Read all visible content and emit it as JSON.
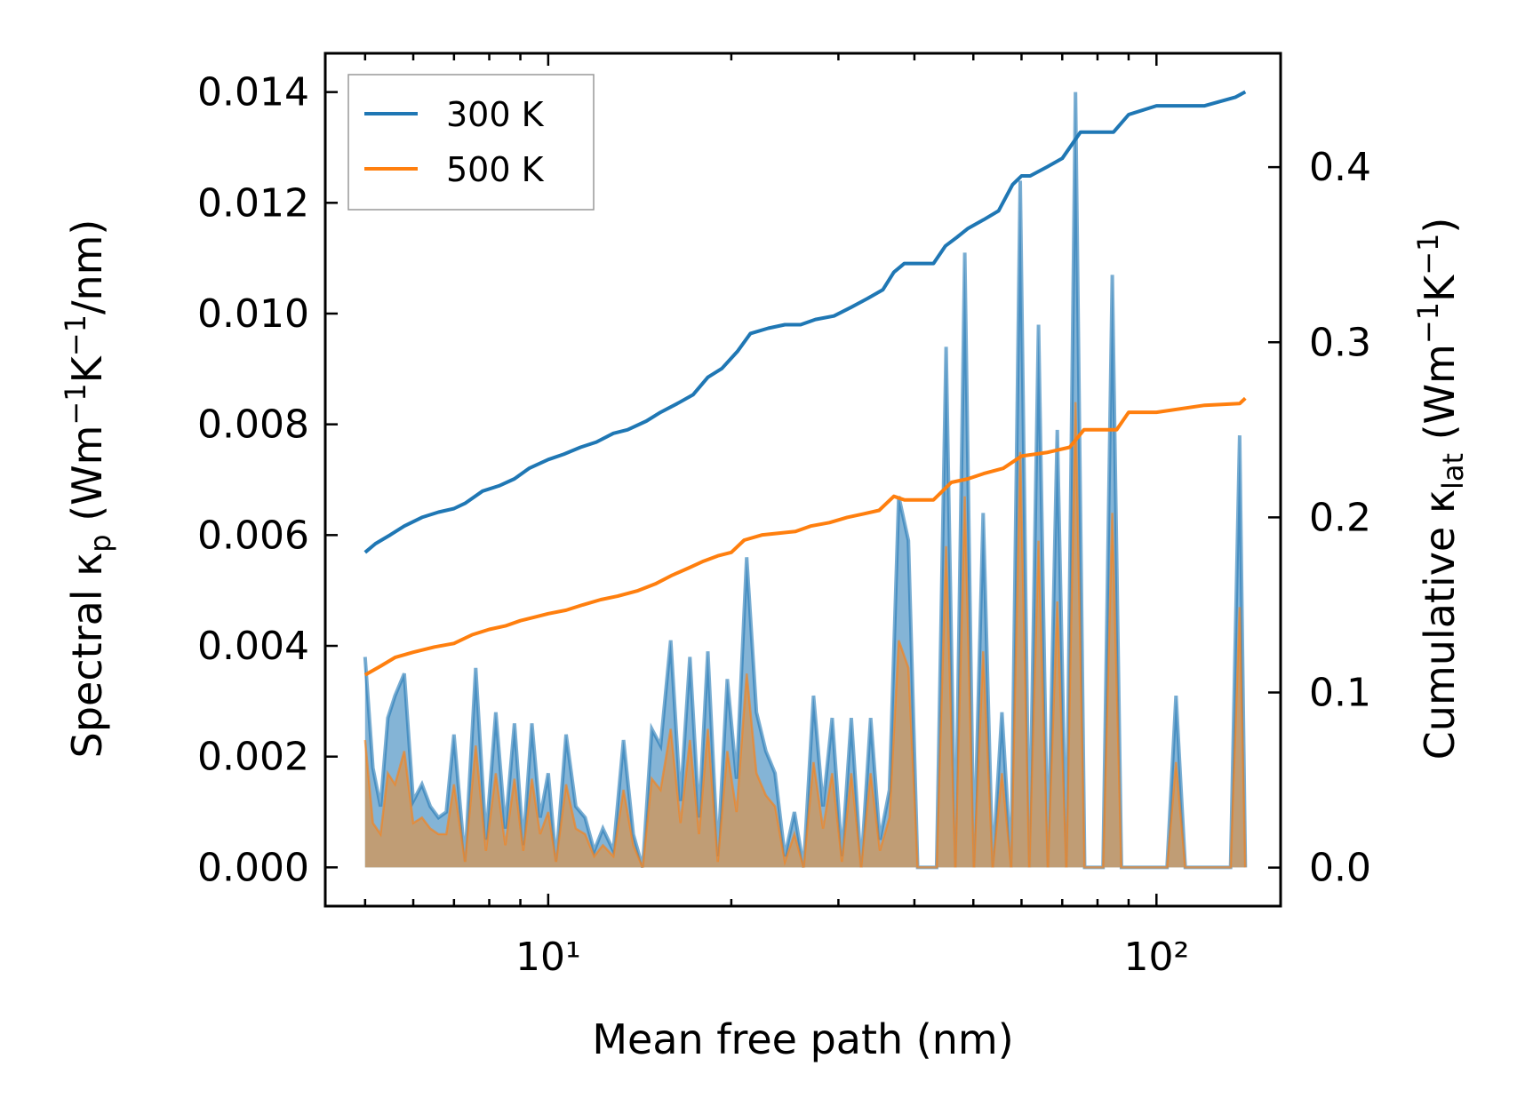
{
  "chart_data": {
    "type": "line",
    "title": "",
    "xlabel": "Mean free path (nm)",
    "ylabel_left": "Spectral κ_p (Wm⁻¹K⁻¹/nm)",
    "ylabel_right": "Cumulative κ_lat (Wm⁻¹K⁻¹)",
    "x_scale": "log",
    "xlim": [
      4.3,
      160
    ],
    "x_ticks": [
      10,
      100
    ],
    "x_tick_labels": [
      "10¹",
      "10²"
    ],
    "ylim_left": [
      -0.0007,
      0.0147
    ],
    "y_ticks_left": [
      0.0,
      0.002,
      0.004,
      0.006,
      0.008,
      0.01,
      0.012,
      0.014
    ],
    "y_tick_labels_left": [
      "0.000",
      "0.002",
      "0.004",
      "0.006",
      "0.008",
      "0.010",
      "0.012",
      "0.014"
    ],
    "ylim_right": [
      -0.022,
      0.465
    ],
    "y_ticks_right": [
      0.0,
      0.1,
      0.2,
      0.3,
      0.4
    ],
    "y_tick_labels_right": [
      "0.0",
      "0.1",
      "0.2",
      "0.3",
      "0.4"
    ],
    "legend": {
      "position": "top-left",
      "entries": [
        {
          "label": "300 K",
          "color": "#1f77b4"
        },
        {
          "label": "500 K",
          "color": "#ff7f0e"
        }
      ]
    },
    "series": [
      {
        "name": "300 K",
        "color": "#1f77b4",
        "cumulative": {
          "x": [
            5.0,
            5.2,
            5.5,
            5.8,
            6.2,
            6.6,
            7.0,
            7.3,
            7.8,
            8.3,
            8.8,
            9.3,
            10.0,
            10.6,
            11.3,
            12.0,
            12.8,
            13.5,
            14.5,
            15.3,
            16.3,
            17.3,
            18.3,
            19.3,
            20.5,
            21.5,
            23.0,
            24.5,
            26.0,
            27.5,
            29.5,
            31.5,
            33.5,
            35.5,
            37.0,
            38.5,
            40.0,
            43.0,
            45.0,
            47.0,
            49.0,
            52.0,
            55.0,
            58.0,
            60.0,
            62.0,
            66.0,
            70.0,
            75.0,
            78.0,
            85.0,
            90.0,
            100.0,
            120.0,
            135.0,
            140.0
          ],
          "y": [
            0.18,
            0.185,
            0.19,
            0.195,
            0.2,
            0.203,
            0.205,
            0.208,
            0.215,
            0.218,
            0.222,
            0.228,
            0.233,
            0.236,
            0.24,
            0.243,
            0.248,
            0.25,
            0.255,
            0.26,
            0.265,
            0.27,
            0.28,
            0.285,
            0.295,
            0.305,
            0.308,
            0.31,
            0.31,
            0.313,
            0.315,
            0.32,
            0.325,
            0.33,
            0.34,
            0.345,
            0.345,
            0.345,
            0.355,
            0.36,
            0.365,
            0.37,
            0.375,
            0.39,
            0.395,
            0.395,
            0.4,
            0.405,
            0.42,
            0.42,
            0.42,
            0.43,
            0.435,
            0.435,
            0.44,
            0.443
          ]
        },
        "spectral": {
          "x": [
            5.0,
            5.15,
            5.3,
            5.45,
            5.6,
            5.8,
            6.0,
            6.2,
            6.4,
            6.6,
            6.8,
            7.0,
            7.3,
            7.6,
            7.9,
            8.2,
            8.5,
            8.8,
            9.1,
            9.4,
            9.7,
            10.0,
            10.3,
            10.7,
            11.1,
            11.5,
            11.9,
            12.3,
            12.8,
            13.3,
            13.8,
            14.3,
            14.8,
            15.3,
            15.9,
            16.5,
            17.1,
            17.7,
            18.3,
            19.0,
            19.7,
            20.4,
            21.2,
            22.0,
            22.8,
            23.6,
            24.5,
            25.4,
            26.3,
            27.3,
            28.3,
            29.3,
            30.4,
            31.5,
            32.7,
            33.9,
            35.1,
            36.4,
            37.7,
            39.1,
            40.5,
            42.0,
            43.5,
            45.1,
            46.7,
            48.4,
            50.1,
            51.9,
            53.8,
            55.7,
            57.7,
            59.7,
            61.8,
            64.0,
            66.3,
            68.7,
            71.1,
            73.6,
            76.2,
            78.9,
            81.7,
            84.6,
            87.6,
            90.7,
            93.9,
            97.2,
            100.6,
            104.1,
            107.7,
            111.5,
            115.4,
            119.4,
            123.6,
            127.9,
            132.4,
            137.0,
            140.0
          ],
          "y": [
            0.0038,
            0.0018,
            0.0011,
            0.0027,
            0.0031,
            0.0035,
            0.0012,
            0.0015,
            0.0011,
            0.0009,
            0.001,
            0.0024,
            0.0001,
            0.0036,
            0.0005,
            0.0028,
            0.0007,
            0.0026,
            0.0004,
            0.0026,
            0.0009,
            0.0017,
            0.0001,
            0.0024,
            0.0011,
            0.0009,
            0.0003,
            0.0007,
            0.0003,
            0.0023,
            0.0006,
            0.0,
            0.0025,
            0.0022,
            0.0041,
            0.0012,
            0.0038,
            0.0009,
            0.0039,
            0.0002,
            0.0034,
            0.0016,
            0.0056,
            0.0028,
            0.0021,
            0.0017,
            0.0002,
            0.001,
            0.0,
            0.0031,
            0.0011,
            0.0027,
            0.0002,
            0.0027,
            0.0,
            0.0027,
            0.0005,
            0.0014,
            0.0067,
            0.0059,
            0.0,
            0.0,
            0.0,
            0.0094,
            0.0,
            0.0111,
            0.0,
            0.0064,
            0.0,
            0.0028,
            0.0,
            0.0124,
            0.0,
            0.0098,
            0.0,
            0.0079,
            0.0,
            0.014,
            0.0,
            0.0,
            0.0,
            0.0107,
            0.0,
            0.0,
            0.0,
            0.0,
            0.0,
            0.0,
            0.0031,
            0.0,
            0.0,
            0.0,
            0.0,
            0.0,
            0.0,
            0.0078,
            0.0
          ]
        }
      },
      {
        "name": "500 K",
        "color": "#ff7f0e",
        "cumulative": {
          "x": [
            5.0,
            5.3,
            5.6,
            6.0,
            6.5,
            7.0,
            7.5,
            8.0,
            8.5,
            9.0,
            9.5,
            10.0,
            10.7,
            11.4,
            12.2,
            13.0,
            14.0,
            15.0,
            16.0,
            17.0,
            18.0,
            19.0,
            20.0,
            21.0,
            22.5,
            24.0,
            25.5,
            27.0,
            29.0,
            31.0,
            33.0,
            35.0,
            37.0,
            38.5,
            40.0,
            43.0,
            46.0,
            49.0,
            52.0,
            56.0,
            60.0,
            66.0,
            72.0,
            76.0,
            80.0,
            86.0,
            90.0,
            100.0,
            120.0,
            137.0,
            140.0
          ],
          "y": [
            0.11,
            0.115,
            0.12,
            0.123,
            0.126,
            0.128,
            0.133,
            0.136,
            0.138,
            0.141,
            0.143,
            0.145,
            0.147,
            0.15,
            0.153,
            0.155,
            0.158,
            0.162,
            0.167,
            0.171,
            0.175,
            0.178,
            0.18,
            0.187,
            0.19,
            0.191,
            0.192,
            0.195,
            0.197,
            0.2,
            0.202,
            0.204,
            0.212,
            0.21,
            0.21,
            0.21,
            0.22,
            0.222,
            0.225,
            0.228,
            0.235,
            0.237,
            0.24,
            0.25,
            0.25,
            0.25,
            0.26,
            0.26,
            0.264,
            0.265,
            0.268
          ]
        },
        "spectral": {
          "x": [
            5.0,
            5.15,
            5.3,
            5.45,
            5.6,
            5.8,
            6.0,
            6.2,
            6.4,
            6.6,
            6.8,
            7.0,
            7.3,
            7.6,
            7.9,
            8.2,
            8.5,
            8.8,
            9.1,
            9.4,
            9.7,
            10.0,
            10.3,
            10.7,
            11.1,
            11.5,
            11.9,
            12.3,
            12.8,
            13.3,
            13.8,
            14.3,
            14.8,
            15.3,
            15.9,
            16.5,
            17.1,
            17.7,
            18.3,
            19.0,
            19.7,
            20.4,
            21.2,
            22.0,
            22.8,
            23.6,
            24.5,
            25.4,
            26.3,
            27.3,
            28.3,
            29.3,
            30.4,
            31.5,
            32.7,
            33.9,
            35.1,
            36.4,
            37.7,
            39.1,
            40.5,
            42.0,
            43.5,
            45.1,
            46.7,
            48.4,
            50.1,
            51.9,
            53.8,
            55.7,
            57.7,
            59.7,
            61.8,
            64.0,
            66.3,
            68.7,
            71.1,
            73.6,
            76.2,
            78.9,
            81.7,
            84.6,
            87.6,
            90.7,
            93.9,
            97.2,
            100.6,
            104.1,
            107.7,
            111.5,
            115.4,
            119.4,
            123.6,
            127.9,
            132.4,
            137.0,
            140.0
          ],
          "y": [
            0.0023,
            0.0008,
            0.0006,
            0.0017,
            0.0015,
            0.0021,
            0.0008,
            0.0009,
            0.0007,
            0.0006,
            0.0006,
            0.0015,
            0.0001,
            0.0022,
            0.0003,
            0.0017,
            0.0004,
            0.0016,
            0.0003,
            0.0016,
            0.0006,
            0.001,
            0.0001,
            0.0015,
            0.0007,
            0.0006,
            0.0002,
            0.0004,
            0.0002,
            0.0014,
            0.0004,
            0.0,
            0.0016,
            0.0014,
            0.0025,
            0.0008,
            0.0023,
            0.0006,
            0.0025,
            0.0001,
            0.0021,
            0.001,
            0.0035,
            0.0017,
            0.0013,
            0.0011,
            0.0001,
            0.0006,
            0.0,
            0.0019,
            0.0007,
            0.0017,
            0.0001,
            0.0017,
            0.0,
            0.0017,
            0.0003,
            0.0009,
            0.0041,
            0.0036,
            0.0,
            0.0,
            0.0,
            0.0058,
            0.0,
            0.0067,
            0.0,
            0.0039,
            0.0,
            0.0017,
            0.0,
            0.0075,
            0.0,
            0.0059,
            0.0,
            0.0048,
            0.0,
            0.0084,
            0.0,
            0.0,
            0.0,
            0.0064,
            0.0,
            0.0,
            0.0,
            0.0,
            0.0,
            0.0,
            0.0019,
            0.0,
            0.0,
            0.0,
            0.0,
            0.0,
            0.0,
            0.0047,
            0.0
          ]
        }
      }
    ]
  }
}
